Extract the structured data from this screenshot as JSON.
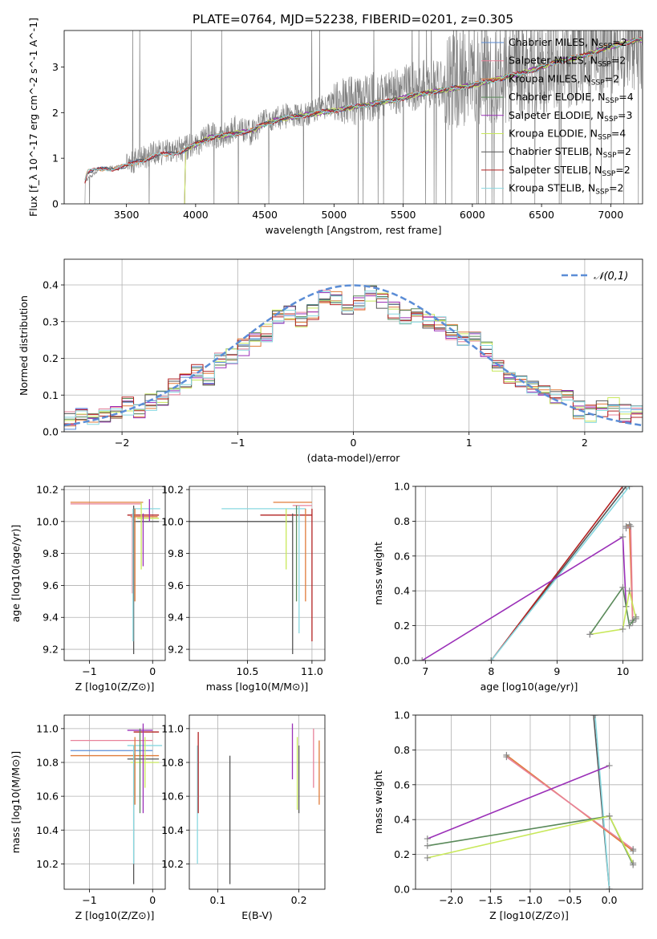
{
  "title": "PLATE=0764, MJD=52238, FIBERID=0201, z=0.305",
  "series": [
    {
      "name": "Chabrier MILES, N_SSP=2",
      "color": "#5b8dd6"
    },
    {
      "name": "Salpeter MILES, N_SSP=2",
      "color": "#e8829a"
    },
    {
      "name": "Kroupa MILES, N_SSP=2",
      "color": "#e07b39"
    },
    {
      "name": "Chabrier ELODIE, N_SSP=4",
      "color": "#5a8a5a"
    },
    {
      "name": "Salpeter ELODIE, N_SSP=3",
      "color": "#9b30b8"
    },
    {
      "name": "Kroupa ELODIE, N_SSP=4",
      "color": "#c8e85a"
    },
    {
      "name": "Chabrier STELIB, N_SSP=2",
      "color": "#555555"
    },
    {
      "name": "Salpeter STELIB, N_SSP=2",
      "color": "#b22222"
    },
    {
      "name": "Kroupa STELIB, N_SSP=2",
      "color": "#88d8e0"
    }
  ],
  "chart_data": [
    {
      "type": "line",
      "xlabel": "wavelength [Angstrom, rest frame]",
      "ylabel": "Flux [f_λ 10^-17 erg cm^-2 s^-1 A^-1]",
      "xlim": [
        3050,
        7230
      ],
      "ylim": [
        0,
        3.8
      ],
      "xticks": [
        3500,
        4000,
        4500,
        5000,
        5500,
        6000,
        6500,
        7000
      ],
      "yticks": [
        0,
        1,
        2,
        3
      ],
      "data_color": "#808080",
      "data_anchor": {
        "x": [
          3200,
          3300,
          3400,
          3500,
          3600,
          3700,
          3800,
          3900,
          4000,
          4100,
          4200,
          4300,
          4400,
          4500,
          4600,
          4700,
          4800,
          4900,
          5000,
          5200,
          5400,
          5600,
          5800,
          6000,
          6200,
          6400,
          6600,
          6800,
          7000,
          7200
        ],
        "y": [
          0.5,
          0.75,
          0.8,
          0.85,
          1.0,
          1.1,
          1.15,
          1.2,
          1.3,
          1.5,
          1.5,
          1.7,
          1.55,
          1.8,
          1.9,
          1.95,
          1.95,
          2.1,
          2.2,
          2.3,
          2.4,
          2.6,
          2.65,
          2.75,
          2.8,
          2.95,
          3.1,
          3.3,
          3.45,
          3.6
        ]
      },
      "model_anchor": {
        "x": [
          3200,
          3220,
          3300,
          3400,
          3500,
          3600,
          3700,
          3800,
          3900,
          4000,
          4100,
          4200,
          4300,
          4400,
          4500,
          4600,
          4700,
          4800,
          4900,
          5000,
          5200,
          5400,
          5600,
          5800,
          6000,
          6200,
          6400,
          6600,
          6800,
          7000,
          7200
        ],
        "y": [
          0.5,
          0.7,
          0.75,
          0.78,
          0.82,
          0.95,
          1.05,
          1.1,
          1.15,
          1.3,
          1.45,
          1.5,
          1.55,
          1.6,
          1.75,
          1.85,
          1.9,
          1.95,
          2.0,
          2.05,
          2.15,
          2.25,
          2.4,
          2.5,
          2.6,
          2.75,
          2.9,
          3.1,
          3.25,
          3.45,
          3.6
        ]
      }
    },
    {
      "type": "histogram",
      "xlabel": "(data-model)/error",
      "ylabel": "Normed distribution",
      "xlim": [
        -2.5,
        2.5
      ],
      "ylim": [
        0,
        0.47
      ],
      "xticks": [
        -2,
        -1,
        0,
        1,
        2
      ],
      "xtick_labels": [
        "−2",
        "−1",
        "0",
        "1",
        "2"
      ],
      "yticks": [
        0.0,
        0.1,
        0.2,
        0.3,
        0.4
      ],
      "bins": [
        -2.5,
        -2.4,
        -2.3,
        -2.2,
        -2.1,
        -2.0,
        -1.9,
        -1.8,
        -1.7,
        -1.6,
        -1.5,
        -1.4,
        -1.3,
        -1.2,
        -1.1,
        -1.0,
        -0.9,
        -0.8,
        -0.7,
        -0.6,
        -0.5,
        -0.4,
        -0.3,
        -0.2,
        -0.1,
        0.0,
        0.1,
        0.2,
        0.3,
        0.4,
        0.5,
        0.6,
        0.7,
        0.8,
        0.9,
        1.0,
        1.1,
        1.2,
        1.3,
        1.4,
        1.5,
        1.6,
        1.7,
        1.8,
        1.9,
        2.0,
        2.1,
        2.2,
        2.3,
        2.4,
        2.5
      ],
      "base_values": [
        0.03,
        0.04,
        0.03,
        0.04,
        0.06,
        0.07,
        0.06,
        0.08,
        0.09,
        0.12,
        0.14,
        0.16,
        0.15,
        0.19,
        0.21,
        0.23,
        0.25,
        0.27,
        0.31,
        0.32,
        0.31,
        0.33,
        0.37,
        0.36,
        0.34,
        0.35,
        0.38,
        0.36,
        0.33,
        0.31,
        0.32,
        0.3,
        0.29,
        0.27,
        0.26,
        0.25,
        0.22,
        0.17,
        0.15,
        0.14,
        0.13,
        0.12,
        0.1,
        0.09,
        0.06,
        0.05,
        0.06,
        0.07,
        0.05,
        0.05
      ],
      "normal_legend": "𝒩(0,1)",
      "normal_color": "#5b8dd6"
    },
    {
      "type": "scatter-errorbar",
      "xlabel": "Z [log10(Z/Z⊙)]",
      "ylabel": "age [log10(age/yr)]",
      "xlim": [
        -1.4,
        0.2
      ],
      "ylim": [
        9.13,
        10.22
      ],
      "xticks": [
        -1,
        0
      ],
      "xtick_labels": [
        "−1",
        "0"
      ],
      "yticks": [
        9.2,
        9.4,
        9.6,
        9.8,
        10.0,
        10.2
      ],
      "h": [
        {
          "y": 10.12,
          "x0": -1.3,
          "x1": -0.15,
          "s": 2
        },
        {
          "y": 10.11,
          "x0": -1.3,
          "x1": -0.18,
          "s": 1
        },
        {
          "y": 10.08,
          "x0": -0.3,
          "x1": 0.12,
          "s": 8
        },
        {
          "y": 10.04,
          "x0": -0.4,
          "x1": 0.1,
          "s": 7
        },
        {
          "y": 10.03,
          "x0": -0.35,
          "x1": 0.08,
          "s": 2
        },
        {
          "y": 10.02,
          "x0": -0.25,
          "x1": 0.1,
          "s": 5
        },
        {
          "y": 10.0,
          "x0": -0.3,
          "x1": 0.1,
          "s": 6
        }
      ],
      "v": [
        {
          "x": -0.3,
          "y0": 9.17,
          "y1": 10.1,
          "s": 6
        },
        {
          "x": -0.32,
          "y0": 9.55,
          "y1": 10.05,
          "s": 1
        },
        {
          "x": -0.31,
          "y0": 9.25,
          "y1": 10.08,
          "s": 8
        },
        {
          "x": -0.28,
          "y0": 9.5,
          "y1": 10.08,
          "s": 2
        },
        {
          "x": -0.18,
          "y0": 9.7,
          "y1": 10.12,
          "s": 5
        },
        {
          "x": -0.15,
          "y0": 9.72,
          "y1": 10.05,
          "s": 4
        },
        {
          "x": -0.05,
          "y0": 10.0,
          "y1": 10.14,
          "s": 4
        }
      ]
    },
    {
      "type": "scatter-errorbar",
      "xlabel": "mass [log10(M/M⊙)]",
      "ylabel": "",
      "xlim": [
        10.05,
        11.1
      ],
      "ylim": [
        9.13,
        10.22
      ],
      "xticks": [
        10.5,
        11.0
      ],
      "xtick_labels": [
        "10.5",
        "11.0"
      ],
      "yticks": [
        9.2,
        9.4,
        9.6,
        9.8,
        10.0,
        10.2
      ],
      "h": [
        {
          "y": 10.12,
          "x0": 10.7,
          "x1": 11.0,
          "s": 2
        },
        {
          "y": 10.1,
          "x0": 10.85,
          "x1": 11.0,
          "s": 1
        },
        {
          "y": 10.08,
          "x0": 10.3,
          "x1": 10.95,
          "s": 8
        },
        {
          "y": 10.04,
          "x0": 10.6,
          "x1": 11.0,
          "s": 7
        },
        {
          "y": 10.0,
          "x0": 10.05,
          "x1": 10.85,
          "s": 6
        }
      ],
      "v": [
        {
          "x": 10.85,
          "y0": 9.17,
          "y1": 10.05,
          "s": 6
        },
        {
          "x": 10.8,
          "y0": 9.7,
          "y1": 10.08,
          "s": 5
        },
        {
          "x": 10.88,
          "y0": 9.5,
          "y1": 10.1,
          "s": 3
        },
        {
          "x": 10.9,
          "y0": 9.3,
          "y1": 10.1,
          "s": 8
        },
        {
          "x": 10.95,
          "y0": 9.5,
          "y1": 10.08,
          "s": 2
        },
        {
          "x": 11.0,
          "y0": 9.25,
          "y1": 10.08,
          "s": 7
        }
      ]
    },
    {
      "type": "line",
      "xlabel": "age [log10(age/yr)]",
      "ylabel": "mass weight",
      "xlim": [
        6.85,
        10.3
      ],
      "ylim": [
        0,
        1
      ],
      "xticks": [
        7,
        8,
        9,
        10
      ],
      "yticks": [
        0.0,
        0.2,
        0.4,
        0.6,
        0.8,
        1.0
      ],
      "series_points": [
        {
          "s": 6,
          "x": [
            8.0,
            10.05
          ],
          "y": [
            0,
            1.0
          ]
        },
        {
          "s": 7,
          "x": [
            8.0,
            10.0
          ],
          "y": [
            0,
            1.0
          ]
        },
        {
          "s": 8,
          "x": [
            8.0,
            10.1
          ],
          "y": [
            0,
            1.0
          ]
        },
        {
          "s": 4,
          "x": [
            6.95,
            10.0,
            10.05
          ],
          "y": [
            0,
            0.71,
            0.31
          ]
        },
        {
          "s": 2,
          "x": [
            10.05,
            10.1,
            10.15
          ],
          "y": [
            0.77,
            0.78,
            0.22
          ]
        },
        {
          "s": 1,
          "x": [
            10.05,
            10.12,
            10.15
          ],
          "y": [
            0.76,
            0.77,
            0.23
          ]
        },
        {
          "s": 3,
          "x": [
            9.5,
            10.0,
            10.1,
            10.2
          ],
          "y": [
            0.15,
            0.42,
            0.2,
            0.25
          ]
        },
        {
          "s": 5,
          "x": [
            9.5,
            10.0,
            10.1,
            10.2
          ],
          "y": [
            0.15,
            0.18,
            0.4,
            0.24
          ]
        }
      ]
    },
    {
      "type": "scatter-errorbar",
      "xlabel": "Z [log10(Z/Z⊙)]",
      "ylabel": "mass [log10(M/M⊙)]",
      "xlim": [
        -1.4,
        0.2
      ],
      "ylim": [
        10.05,
        11.08
      ],
      "xticks": [
        -1,
        0
      ],
      "xtick_labels": [
        "−1",
        "0"
      ],
      "yticks": [
        10.2,
        10.4,
        10.6,
        10.8,
        11.0
      ],
      "h": [
        {
          "y": 10.99,
          "x0": -0.4,
          "x1": 0.0,
          "s": 4
        },
        {
          "y": 10.98,
          "x0": -0.3,
          "x1": 0.1,
          "s": 7
        },
        {
          "y": 10.93,
          "x0": -1.3,
          "x1": 0.0,
          "s": 1
        },
        {
          "y": 10.9,
          "x0": -0.4,
          "x1": 0.15,
          "s": 8
        },
        {
          "y": 10.87,
          "x0": -1.3,
          "x1": 0.0,
          "s": 0
        },
        {
          "y": 10.84,
          "x0": -1.3,
          "x1": 0.1,
          "s": 2
        },
        {
          "y": 10.82,
          "x0": -0.4,
          "x1": 0.1,
          "s": 6
        },
        {
          "y": 10.8,
          "x0": -0.35,
          "x1": 0.1,
          "s": 5
        }
      ],
      "v": [
        {
          "x": -0.3,
          "y0": 10.08,
          "y1": 10.85,
          "s": 6
        },
        {
          "x": -0.3,
          "y0": 10.2,
          "y1": 10.9,
          "s": 8
        },
        {
          "x": -0.28,
          "y0": 10.55,
          "y1": 10.95,
          "s": 2
        },
        {
          "x": -0.2,
          "y0": 10.5,
          "y1": 11.0,
          "s": 3
        },
        {
          "x": -0.15,
          "y0": 10.5,
          "y1": 11.03,
          "s": 4
        },
        {
          "x": -0.12,
          "y0": 10.65,
          "y1": 10.95,
          "s": 5
        }
      ]
    },
    {
      "type": "scatter-errorbar",
      "xlabel": "E(B-V)",
      "ylabel": "",
      "xlim": [
        0.065,
        0.232
      ],
      "ylim": [
        10.05,
        11.08
      ],
      "xticks": [
        0.1,
        0.2
      ],
      "xtick_labels": [
        "0.1",
        "0.2"
      ],
      "yticks": [
        10.2,
        10.4,
        10.6,
        10.8,
        11.0
      ],
      "h": [],
      "v": [
        {
          "x": 0.075,
          "y0": 10.2,
          "y1": 10.9,
          "s": 8
        },
        {
          "x": 0.076,
          "y0": 10.5,
          "y1": 10.98,
          "s": 7
        },
        {
          "x": 0.115,
          "y0": 10.08,
          "y1": 10.84,
          "s": 6
        },
        {
          "x": 0.192,
          "y0": 10.7,
          "y1": 11.03,
          "s": 4
        },
        {
          "x": 0.198,
          "y0": 10.52,
          "y1": 10.95,
          "s": 5
        },
        {
          "x": 0.2,
          "y0": 10.5,
          "y1": 10.9,
          "s": 6
        },
        {
          "x": 0.218,
          "y0": 10.65,
          "y1": 11.0,
          "s": 1
        },
        {
          "x": 0.225,
          "y0": 10.55,
          "y1": 10.93,
          "s": 2
        }
      ]
    },
    {
      "type": "line",
      "xlabel": "Z [log10(Z/Z⊙)]",
      "ylabel": "mass weight",
      "xlim": [
        -2.45,
        0.42
      ],
      "ylim": [
        0,
        1
      ],
      "xticks": [
        -2.0,
        -1.5,
        -1.0,
        -0.5,
        0.0
      ],
      "xtick_labels": [
        "−2.0",
        "−1.5",
        "−1.0",
        "−0.5",
        "0.0"
      ],
      "yticks": [
        0.0,
        0.2,
        0.4,
        0.6,
        0.8,
        1.0
      ],
      "series_points": [
        {
          "s": 6,
          "x": [
            -0.2,
            0.0
          ],
          "y": [
            1.0,
            0
          ]
        },
        {
          "s": 8,
          "x": [
            -0.18,
            0.0
          ],
          "y": [
            1.0,
            0
          ]
        },
        {
          "s": 2,
          "x": [
            -1.3,
            0.3
          ],
          "y": [
            0.77,
            0.22
          ]
        },
        {
          "s": 1,
          "x": [
            -1.3,
            0.3
          ],
          "y": [
            0.76,
            0.23
          ]
        },
        {
          "s": 4,
          "x": [
            -2.3,
            0.0
          ],
          "y": [
            0.29,
            0.71
          ]
        },
        {
          "s": 3,
          "x": [
            -2.3,
            0.0,
            0.3
          ],
          "y": [
            0.25,
            0.42,
            0.14
          ]
        },
        {
          "s": 5,
          "x": [
            -2.3,
            0.0,
            0.3
          ],
          "y": [
            0.18,
            0.42,
            0.15
          ]
        }
      ]
    }
  ]
}
